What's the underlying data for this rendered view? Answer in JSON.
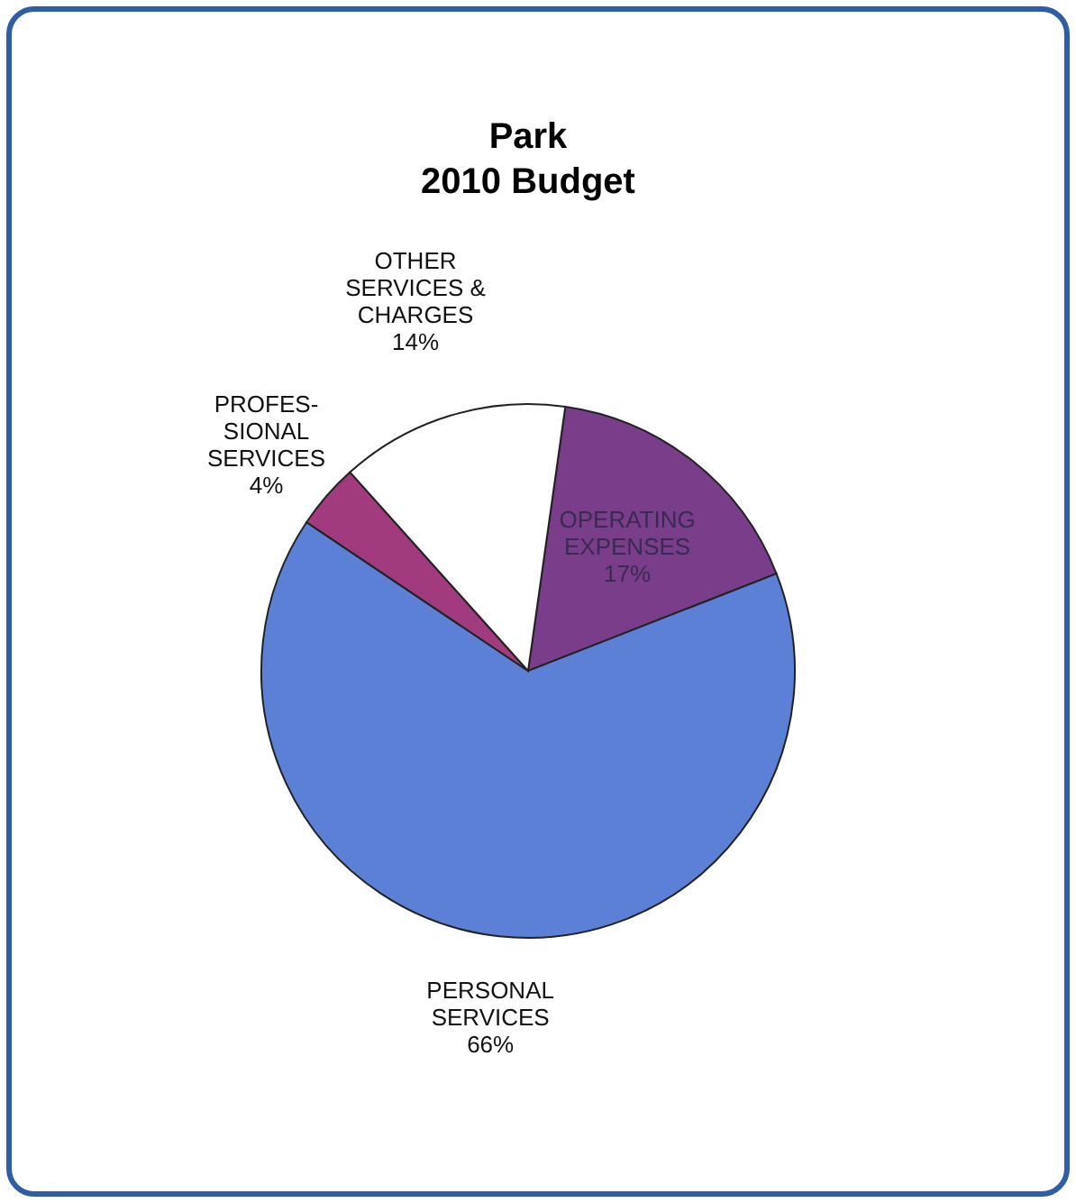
{
  "chart_data": {
    "type": "pie",
    "title": "Park\n2010 Budget",
    "categories": [
      "OPERATING\nEXPENSES",
      "PERSONAL\nSERVICES",
      "PROFES-\nSIONAL\nSERVICES",
      "OTHER\nSERVICES &\nCHARGES"
    ],
    "values": [
      17,
      66,
      4,
      14
    ],
    "value_labels": [
      "17%",
      "66%",
      "4%",
      "14%"
    ],
    "colors": [
      "#7a3d8a",
      "#5b80d6",
      "#a23a7e",
      "#ffffff"
    ]
  }
}
